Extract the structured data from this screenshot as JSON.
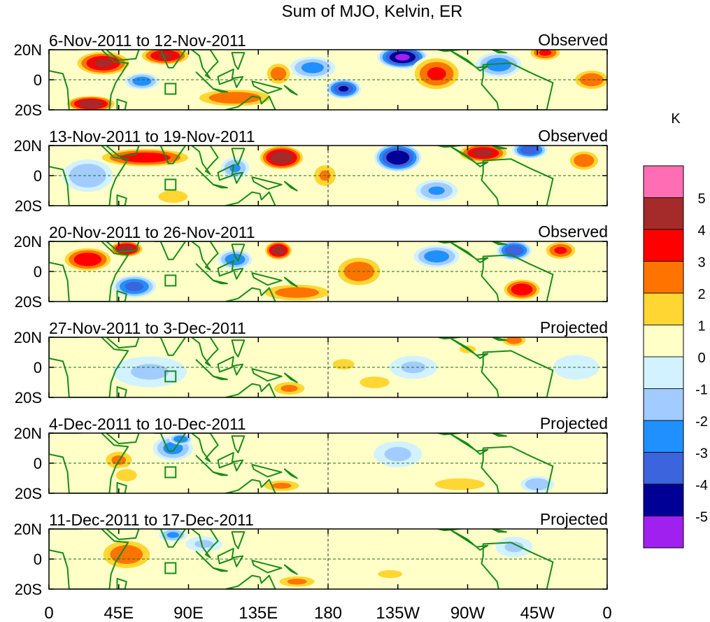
{
  "chart_data": {
    "type": "heatmap",
    "title": "Sum of MJO, Kelvin, ER",
    "colorbar": {
      "unit": "K",
      "tick_labels": [
        "5",
        "4",
        "3",
        "2",
        "1",
        "0",
        "-1",
        "-2",
        "-3",
        "-4",
        "-5"
      ],
      "bins_top_to_bottom": [
        {
          "range": "> 5",
          "color": "#ff6eb4"
        },
        {
          "range": "4 to 5",
          "color": "#a52a2a"
        },
        {
          "range": "3 to 4",
          "color": "#ff0000"
        },
        {
          "range": "2 to 3",
          "color": "#ff7400"
        },
        {
          "range": "1 to 2",
          "color": "#ffd632"
        },
        {
          "range": "0 to 1",
          "color": "#ffffc8"
        },
        {
          "range": "-1 to 0",
          "color": "#d2f2ff"
        },
        {
          "range": "-2 to -1",
          "color": "#a2ccff"
        },
        {
          "range": "-3 to -2",
          "color": "#2090ff"
        },
        {
          "range": "-4 to -3",
          "color": "#3c64dc"
        },
        {
          "range": "-5 to -4",
          "color": "#000096"
        },
        {
          "range": "< -5",
          "color": "#a020f0"
        }
      ]
    },
    "x_tick_labels": [
      "0",
      "45E",
      "90E",
      "135E",
      "180",
      "135W",
      "90W",
      "45W",
      "0"
    ],
    "y_tick_labels": [
      "20N",
      "0",
      "20S"
    ],
    "xlim_degrees_east": [
      0,
      360
    ],
    "ylim_degrees": [
      -20,
      20
    ],
    "panels": [
      {
        "date_range": "6-Nov-2011 to 12-Nov-2011",
        "status": "Observed",
        "blobs": [
          {
            "lon": 35,
            "lat": 11,
            "rx": 20,
            "ry": 9,
            "v": 4.6
          },
          {
            "lon": 75,
            "lat": 16,
            "rx": 18,
            "ry": 7,
            "v": 4.5
          },
          {
            "lon": 27,
            "lat": -16,
            "rx": 18,
            "ry": 6,
            "v": 5.2
          },
          {
            "lon": 60,
            "lat": -1,
            "rx": 12,
            "ry": 6,
            "v": -3
          },
          {
            "lon": 120,
            "lat": -12,
            "rx": 30,
            "ry": 7,
            "v": 3.3
          },
          {
            "lon": 170,
            "lat": 8,
            "rx": 16,
            "ry": 8,
            "v": -2.8
          },
          {
            "lon": 148,
            "lat": 4,
            "rx": 10,
            "ry": 9,
            "v": 3
          },
          {
            "lon": 190,
            "lat": -6,
            "rx": 12,
            "ry": 7,
            "v": -4.5
          },
          {
            "lon": 228,
            "lat": 15,
            "rx": 17,
            "ry": 8,
            "v": -5.6
          },
          {
            "lon": 250,
            "lat": 4,
            "rx": 18,
            "ry": 13,
            "v": 3.6
          },
          {
            "lon": 290,
            "lat": 10,
            "rx": 16,
            "ry": 9,
            "v": -3
          },
          {
            "lon": 320,
            "lat": 18,
            "rx": 12,
            "ry": 6,
            "v": 3.6
          },
          {
            "lon": 350,
            "lat": 0,
            "rx": 14,
            "ry": 8,
            "v": 3.2
          }
        ]
      },
      {
        "date_range": "13-Nov-2011 to 19-Nov-2011",
        "status": "Observed",
        "blobs": [
          {
            "lon": 62,
            "lat": 12,
            "rx": 34,
            "ry": 7,
            "v": 4.2
          },
          {
            "lon": 25,
            "lat": 0,
            "rx": 18,
            "ry": 12,
            "v": -2.3
          },
          {
            "lon": 150,
            "lat": 12,
            "rx": 16,
            "ry": 9,
            "v": 5.4
          },
          {
            "lon": 120,
            "lat": 5,
            "rx": 10,
            "ry": 8,
            "v": -2.5
          },
          {
            "lon": 178,
            "lat": 0,
            "rx": 10,
            "ry": 10,
            "v": 2.5
          },
          {
            "lon": 225,
            "lat": 12,
            "rx": 16,
            "ry": 10,
            "v": -5.4
          },
          {
            "lon": 280,
            "lat": 15,
            "rx": 18,
            "ry": 7,
            "v": 4.8
          },
          {
            "lon": 310,
            "lat": 17,
            "rx": 12,
            "ry": 6,
            "v": -4.4
          },
          {
            "lon": 345,
            "lat": 10,
            "rx": 12,
            "ry": 8,
            "v": 3.2
          },
          {
            "lon": 80,
            "lat": -14,
            "rx": 14,
            "ry": 6,
            "v": 2.4
          },
          {
            "lon": 250,
            "lat": -10,
            "rx": 15,
            "ry": 8,
            "v": -2.5
          }
        ]
      },
      {
        "date_range": "20-Nov-2011 to 26-Nov-2011",
        "status": "Observed",
        "blobs": [
          {
            "lon": 25,
            "lat": 8,
            "rx": 18,
            "ry": 9,
            "v": 4.3
          },
          {
            "lon": 50,
            "lat": 15,
            "rx": 12,
            "ry": 6,
            "v": 5.2
          },
          {
            "lon": 55,
            "lat": -10,
            "rx": 15,
            "ry": 8,
            "v": -3.8
          },
          {
            "lon": 148,
            "lat": 14,
            "rx": 10,
            "ry": 7,
            "v": 5.2
          },
          {
            "lon": 160,
            "lat": -14,
            "rx": 28,
            "ry": 7,
            "v": 3
          },
          {
            "lon": 200,
            "lat": 0,
            "rx": 18,
            "ry": 12,
            "v": 3.2
          },
          {
            "lon": 120,
            "lat": 8,
            "rx": 12,
            "ry": 7,
            "v": -3.2
          },
          {
            "lon": 250,
            "lat": 10,
            "rx": 16,
            "ry": 8,
            "v": -3
          },
          {
            "lon": 300,
            "lat": 14,
            "rx": 12,
            "ry": 7,
            "v": -4.4
          },
          {
            "lon": 305,
            "lat": -12,
            "rx": 14,
            "ry": 8,
            "v": 4.3
          },
          {
            "lon": 330,
            "lat": 14,
            "rx": 12,
            "ry": 7,
            "v": 3.6
          }
        ]
      },
      {
        "date_range": "27-Nov-2011 to 3-Dec-2011",
        "status": "Projected",
        "blobs": [
          {
            "lon": 65,
            "lat": -3,
            "rx": 28,
            "ry": 12,
            "v": -1.5
          },
          {
            "lon": 155,
            "lat": -14,
            "rx": 14,
            "ry": 6,
            "v": 2.6
          },
          {
            "lon": 190,
            "lat": 2,
            "rx": 16,
            "ry": 8,
            "v": 1.5
          },
          {
            "lon": 235,
            "lat": 0,
            "rx": 18,
            "ry": 9,
            "v": -1.5
          },
          {
            "lon": 210,
            "lat": -10,
            "rx": 15,
            "ry": 6,
            "v": 2.2
          },
          {
            "lon": 300,
            "lat": 18,
            "rx": 10,
            "ry": 5,
            "v": 3
          },
          {
            "lon": 270,
            "lat": 12,
            "rx": 12,
            "ry": 6,
            "v": 1.5
          },
          {
            "lon": 340,
            "lat": 0,
            "rx": 18,
            "ry": 10,
            "v": -1.2
          }
        ]
      },
      {
        "date_range": "4-Dec-2011 to 10-Dec-2011",
        "status": "Projected",
        "blobs": [
          {
            "lon": 45,
            "lat": 2,
            "rx": 12,
            "ry": 8,
            "v": 2.6
          },
          {
            "lon": 50,
            "lat": -8,
            "rx": 10,
            "ry": 6,
            "v": 2.4
          },
          {
            "lon": 80,
            "lat": 10,
            "rx": 14,
            "ry": 9,
            "v": -2.8
          },
          {
            "lon": 85,
            "lat": 16,
            "rx": 8,
            "ry": 4,
            "v": -3.4
          },
          {
            "lon": 150,
            "lat": -15,
            "rx": 16,
            "ry": 5,
            "v": 2.6
          },
          {
            "lon": 225,
            "lat": 6,
            "rx": 18,
            "ry": 10,
            "v": -1.6
          },
          {
            "lon": 265,
            "lat": -14,
            "rx": 25,
            "ry": 6,
            "v": 2.2
          },
          {
            "lon": 315,
            "lat": -14,
            "rx": 12,
            "ry": 6,
            "v": -2.3
          }
        ]
      },
      {
        "date_range": "11-Dec-2011 to 17-Dec-2011",
        "status": "Projected",
        "blobs": [
          {
            "lon": 50,
            "lat": 3,
            "rx": 20,
            "ry": 12,
            "v": 3.1
          },
          {
            "lon": 80,
            "lat": 16,
            "rx": 10,
            "ry": 5,
            "v": -2.6
          },
          {
            "lon": 100,
            "lat": 10,
            "rx": 14,
            "ry": 6,
            "v": -1.5
          },
          {
            "lon": 160,
            "lat": -15,
            "rx": 16,
            "ry": 5,
            "v": 2.6
          },
          {
            "lon": 220,
            "lat": -10,
            "rx": 18,
            "ry": 6,
            "v": 1.5
          },
          {
            "lon": 300,
            "lat": 8,
            "rx": 14,
            "ry": 8,
            "v": -1.5
          }
        ]
      }
    ]
  }
}
